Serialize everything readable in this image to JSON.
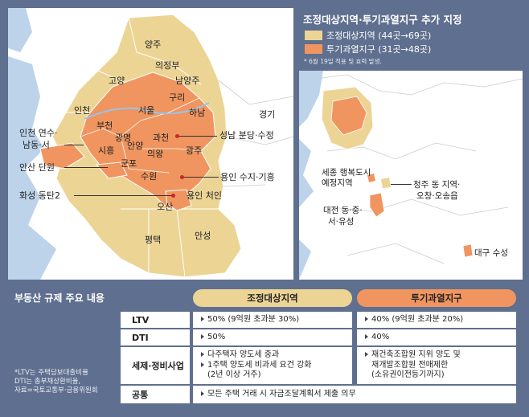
{
  "legend": {
    "title": "조정대상지역·투기과열지구 추가 지정",
    "items": [
      {
        "label": "조정대상지역 (44곳→69곳)",
        "color": "#ecd495"
      },
      {
        "label": "투기과열지구 (31곳→48곳)",
        "color": "#f0955f"
      }
    ],
    "note": "* 6월 19일 적용 및 효력 발생."
  },
  "left_map_labels": {
    "yangju": "양주",
    "uijeongbu": "의정부",
    "goyang": "고양",
    "namyangju": "남양주",
    "guri": "구리",
    "seoul": "서울",
    "hanam": "하남",
    "gyeonggi": "경기",
    "incheon": "인천",
    "bucheon": "부천",
    "gwangmyeong": "광명",
    "gwacheon": "과천",
    "seongnam": "성남 분당·수정",
    "incheon_yeonsu": "인천 연수·",
    "namdong_seo": "남동·서",
    "siheung": "시흥",
    "anyang": "안양",
    "uiwang": "의왕",
    "gwangju": "광주",
    "ansan": "안산 단원",
    "gunpo": "군포",
    "suwon": "수원",
    "yongin_suji": "용인 수지·기흥",
    "hwaseong": "화성 동탄2",
    "yongin_cheoin": "용인 처인",
    "osan": "오산",
    "pyeongtaek": "평택",
    "anseong": "안성"
  },
  "right_map_labels": {
    "sejong1": "세종 행복도시",
    "sejong2": "예정지역",
    "cheongju1": "청주 동 지역·",
    "cheongju2": "오창·오송읍",
    "daejeon1": "대전 동·중·",
    "daejeon2": "서·유성",
    "daegu": "대구 수성"
  },
  "table": {
    "title": "부동산 규제 주요 내용",
    "col_headers": [
      {
        "label": "조정대상지역",
        "color": "#ecd495"
      },
      {
        "label": "투기과열지구",
        "color": "#f0955f"
      }
    ],
    "rows": [
      {
        "label": "LTV",
        "col1": [
          "50% (9억원 초과분 30%)"
        ],
        "col2": [
          "40% (9억원 초과분 20%)"
        ]
      },
      {
        "label": "DTI",
        "col1": [
          "50%"
        ],
        "col2": [
          "40%"
        ]
      },
      {
        "label": "세제·정비사업",
        "col1": [
          "다주택자 양도세 중과",
          "1주택 양도세 비과세 요건 강화",
          "(2년 이상 거주)"
        ],
        "col2": [
          "재건축조합원 지위 양도 및",
          "재개발조합원 전매제한",
          "(소유권이전등기까지)"
        ]
      },
      {
        "label": "공통",
        "common": "모든 주택 거래 시 자금조달계획서 제출 의무"
      }
    ],
    "footnote": [
      "*LTV는 주택담보대출비율",
      "DTI는 총부채상환비율,",
      "자료=국토교통부·금융위원회"
    ]
  }
}
